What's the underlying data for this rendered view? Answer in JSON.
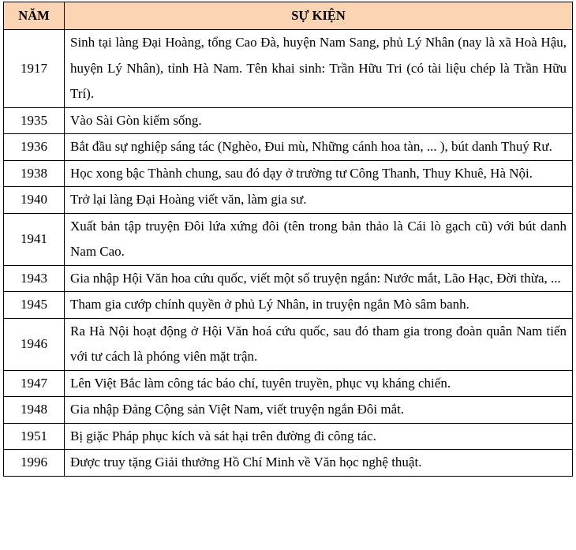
{
  "header": {
    "year": "NĂM",
    "event": "SỰ KIỆN",
    "background": "#FBD4B4"
  },
  "rows": [
    {
      "year": "1917",
      "event": "Sinh tại làng Đại Hoàng, tổng Cao Đà, huyện Nam Sang, phủ Lý Nhân (nay là xã Hoà Hậu, huyện Lý Nhân), tỉnh Hà Nam. Tên khai sinh: Trần Hữu Tri (có tài liệu chép là Trần Hữu Trí)."
    },
    {
      "year": "1935",
      "event": "Vào Sài Gòn kiếm sống."
    },
    {
      "year": "1936",
      "event": "Bắt đầu sự nghiệp sáng tác (Nghèo, Đui mù, Những cánh hoa tàn, ... ), bút danh Thuý Rư."
    },
    {
      "year": "1938",
      "event": "Học xong bậc Thành chung, sau đó dạy ở trường tư Công Thanh, Thuy Khuê, Hà Nội."
    },
    {
      "year": "1940",
      "event": "Trở lại làng Đại Hoàng viết văn, làm gia sư."
    },
    {
      "year": "1941",
      "event": "Xuất bản tập truyện Đôi lứa xứng đôi (tên trong bản thảo là Cái lò gạch cũ) với bút danh Nam Cao."
    },
    {
      "year": "1943",
      "event": "Gia nhập Hội Văn hoa cứu quốc, viết một số truyện ngắn: Nước mắt, Lão Hạc, Đời thừa, ..."
    },
    {
      "year": "1945",
      "event": "Tham gia cướp chính quyền ở phủ Lý Nhân, in truyện ngắn Mò sâm banh."
    },
    {
      "year": "1946",
      "event": "Ra Hà Nội hoạt động ở Hội Văn hoá cứu quốc, sau đó tham gia trong đoàn quân Nam tiến với tư cách là phóng viên mặt trận."
    },
    {
      "year": "1947",
      "event": "Lên Việt Bắc làm công tác báo chí, tuyên truyền, phục vụ kháng chiến."
    },
    {
      "year": "1948",
      "event": "Gia nhập Đảng Cộng sản Việt Nam, viết truyện ngắn Đôi mắt."
    },
    {
      "year": "1951",
      "event": "Bị giặc Pháp phục kích và sát hại trên đường đi công tác."
    },
    {
      "year": "1996",
      "event": "Được truy tặng Giải thưởng Hồ Chí Minh về Văn học nghệ thuật."
    }
  ]
}
